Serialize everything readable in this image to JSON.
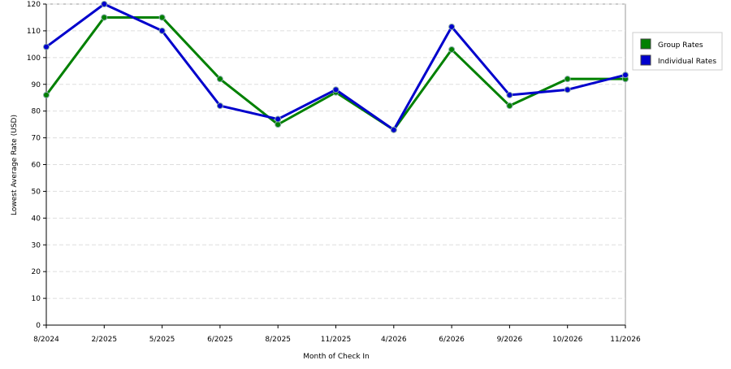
{
  "chart_data": {
    "type": "line",
    "x_label": "Month of Check In",
    "y_label": "Lowest Average Rate (USD)",
    "categories": [
      "8/2024",
      "2/2025",
      "5/2025",
      "6/2025",
      "8/2025",
      "11/2025",
      "4/2026",
      "6/2026",
      "9/2026",
      "10/2026",
      "11/2026"
    ],
    "series": [
      {
        "name": "Group Rates",
        "color": "#008000",
        "values": [
          86,
          115,
          115,
          92,
          75,
          87,
          73,
          103,
          82,
          92,
          92
        ]
      },
      {
        "name": "Individual Rates",
        "color": "#0000cc",
        "values": [
          104,
          120,
          110,
          82,
          77,
          88,
          73,
          111.5,
          86,
          88,
          93.5
        ]
      }
    ],
    "ylim": [
      0,
      120
    ],
    "yticks": [
      0,
      10,
      20,
      30,
      40,
      50,
      60,
      70,
      80,
      90,
      100,
      110,
      120
    ],
    "grid": true,
    "legend": "right"
  }
}
